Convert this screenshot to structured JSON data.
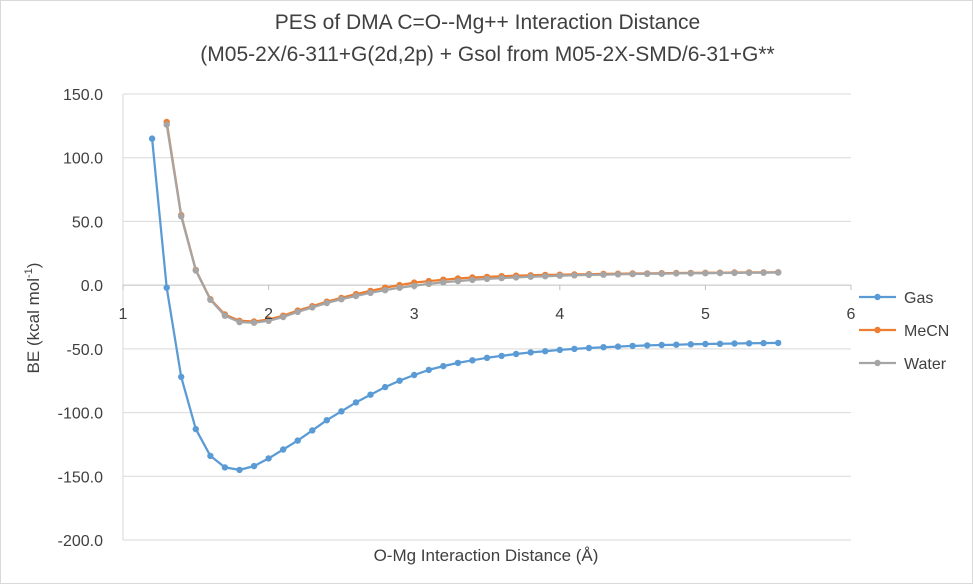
{
  "chart_data": {
    "type": "scatter",
    "title": "PES of DMA C=O--Mg++ Interaction Distance",
    "subtitle": "(M05-2X/6-311+G(2d,2p) + Gsol from M05-2X-SMD/6-31+G**",
    "xlabel": "O-Mg Interaction Distance (Å)",
    "ylabel_main": "BE (kcal mol",
    "ylabel_sup": "-1",
    "ylabel_end": ")",
    "xlim": [
      1,
      6
    ],
    "ylim": [
      -200,
      150
    ],
    "xticks": [
      1,
      2,
      3,
      4,
      5,
      6
    ],
    "xtick_labels": [
      "1",
      "2",
      "3",
      "4",
      "5",
      "6"
    ],
    "yticks": [
      150,
      100,
      50,
      0,
      -50,
      -100,
      -150,
      -200
    ],
    "ytick_labels": [
      "150.0",
      "100.0",
      "50.0",
      "0.0",
      "-50.0",
      "-100.0",
      "-150.0",
      "-200.0"
    ],
    "grid": "horizontal",
    "legend": "right",
    "x": [
      1.2,
      1.3,
      1.4,
      1.5,
      1.6,
      1.7,
      1.8,
      1.9,
      2.0,
      2.1,
      2.2,
      2.3,
      2.4,
      2.5,
      2.6,
      2.7,
      2.8,
      2.9,
      3.0,
      3.1,
      3.2,
      3.3,
      3.4,
      3.5,
      3.6,
      3.7,
      3.8,
      3.9,
      4.0,
      4.1,
      4.2,
      4.3,
      4.4,
      4.5,
      4.6,
      4.7,
      4.8,
      4.9,
      5.0,
      5.1,
      5.2,
      5.3,
      5.4,
      5.5
    ],
    "series": [
      {
        "name": "Gas",
        "color": "#5b9bd5",
        "values": [
          115.0,
          -2.0,
          -72.0,
          -113.0,
          -134.0,
          -143.0,
          -145.0,
          -142.0,
          -136.0,
          -129.0,
          -122.0,
          -114.0,
          -106.0,
          -99.0,
          -92.0,
          -86.0,
          -80.0,
          -75.0,
          -70.5,
          -66.5,
          -63.5,
          -61.0,
          -59.0,
          -57.0,
          -55.5,
          -54.0,
          -52.8,
          -51.8,
          -50.8,
          -50.0,
          -49.3,
          -48.7,
          -48.2,
          -47.7,
          -47.3,
          -47.0,
          -46.7,
          -46.4,
          -46.2,
          -46.0,
          -45.8,
          -45.6,
          -45.5,
          -45.3
        ]
      },
      {
        "name": "MeCN",
        "color": "#ed7d31",
        "values": [
          null,
          128.0,
          55.0,
          12.0,
          -11.0,
          -23.0,
          -28.0,
          -28.5,
          -27.0,
          -24.0,
          -20.0,
          -16.5,
          -13.0,
          -10.0,
          -7.0,
          -4.5,
          -2.0,
          0.0,
          2.0,
          3.2,
          4.3,
          5.2,
          6.0,
          6.5,
          7.0,
          7.4,
          7.7,
          8.0,
          8.2,
          8.4,
          8.6,
          8.8,
          9.0,
          9.1,
          9.2,
          9.4,
          9.5,
          9.6,
          9.7,
          9.8,
          9.9,
          10.0,
          10.0,
          10.1
        ]
      },
      {
        "name": "Water",
        "color": "#a5a5a5",
        "values": [
          null,
          126.0,
          54.0,
          11.5,
          -11.5,
          -24.0,
          -29.0,
          -29.5,
          -28.0,
          -25.0,
          -21.0,
          -17.5,
          -14.0,
          -11.0,
          -8.5,
          -6.0,
          -4.0,
          -2.0,
          -0.5,
          1.0,
          2.2,
          3.2,
          4.1,
          4.9,
          5.5,
          6.1,
          6.6,
          7.0,
          7.4,
          7.7,
          8.0,
          8.2,
          8.5,
          8.7,
          8.9,
          9.0,
          9.2,
          9.3,
          9.4,
          9.5,
          9.6,
          9.7,
          9.8,
          9.9
        ]
      }
    ]
  }
}
